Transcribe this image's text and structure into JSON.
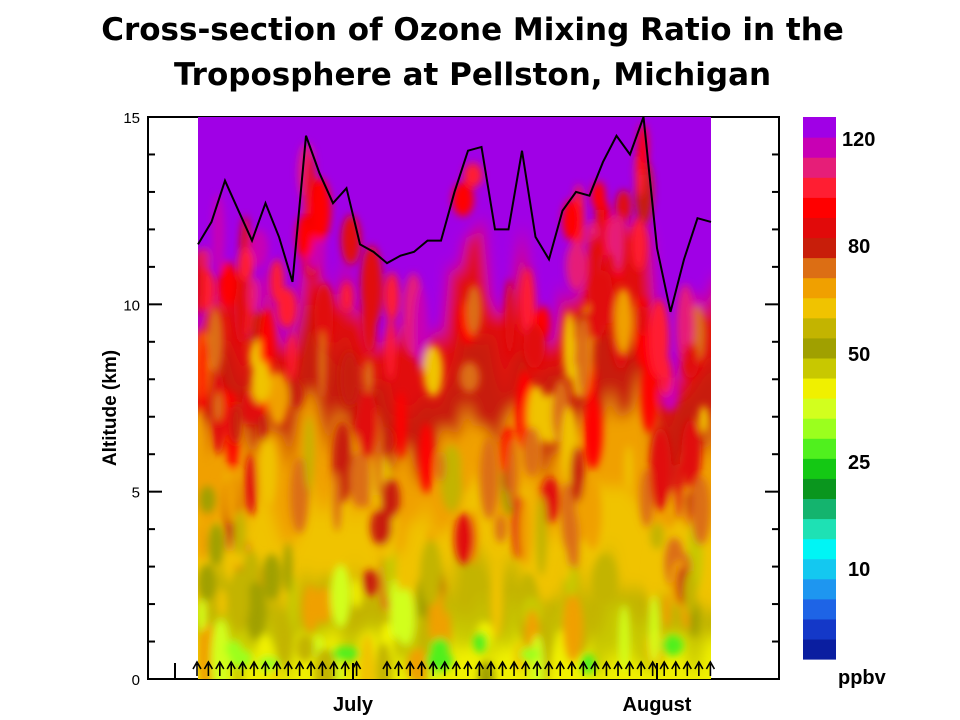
{
  "chart_data": {
    "type": "heatmap",
    "title_lines": [
      "Cross-section of Ozone Mixing Ratio in the",
      "Troposphere at Pellston, Michigan"
    ],
    "ylabel": "Altitude (km)",
    "ylim": [
      0,
      15
    ],
    "y_ticks": [
      0,
      5,
      10,
      15
    ],
    "x_labels": [
      "July",
      "August"
    ],
    "colorbar": {
      "unit": "ppbv",
      "labels": [
        "120",
        "80",
        "50",
        "25",
        "10"
      ],
      "colors": [
        "#0a1ea0",
        "#1438c8",
        "#1e64e6",
        "#1e96f0",
        "#14c8f0",
        "#00f5f5",
        "#1ee1b4",
        "#14b46e",
        "#0a961e",
        "#14c814",
        "#50f01e",
        "#9bff1e",
        "#d2ff1e",
        "#f0f000",
        "#c8c800",
        "#a0a000",
        "#c3b400",
        "#f0c300",
        "#f0a000",
        "#dc6e14",
        "#c81e0a",
        "#e10a0a",
        "#ff0000",
        "#ff1e32",
        "#e61e78",
        "#c800b4",
        "#a000e6"
      ]
    },
    "tropopause_km": [
      11.6,
      12.2,
      13.3,
      12.5,
      11.7,
      12.7,
      11.8,
      10.6,
      14.5,
      13.5,
      12.7,
      13.1,
      11.6,
      11.4,
      11.1,
      11.3,
      11.4,
      11.7,
      11.7,
      13.0,
      14.1,
      14.2,
      12.0,
      12.0,
      14.1,
      11.8,
      11.2,
      12.5,
      13.0,
      12.9,
      13.8,
      14.5,
      14.0,
      15.0,
      11.5,
      9.8,
      11.2,
      12.3,
      12.2
    ]
  }
}
